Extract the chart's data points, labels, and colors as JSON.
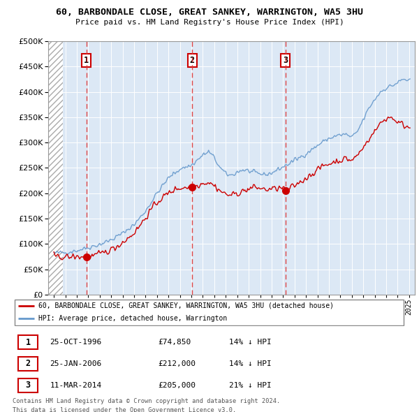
{
  "title": "60, BARBONDALE CLOSE, GREAT SANKEY, WARRINGTON, WA5 3HU",
  "subtitle": "Price paid vs. HM Land Registry's House Price Index (HPI)",
  "legend_label_red": "60, BARBONDALE CLOSE, GREAT SANKEY, WARRINGTON, WA5 3HU (detached house)",
  "legend_label_blue": "HPI: Average price, detached house, Warrington",
  "transactions": [
    {
      "num": 1,
      "date": "25-OCT-1996",
      "price": 74850,
      "x": 1996.83,
      "pct": "14%",
      "dir": "↓"
    },
    {
      "num": 2,
      "date": "25-JAN-2006",
      "price": 212000,
      "x": 2006.07,
      "pct": "14%",
      "dir": "↓"
    },
    {
      "num": 3,
      "date": "11-MAR-2014",
      "price": 205000,
      "x": 2014.21,
      "pct": "21%",
      "dir": "↓"
    }
  ],
  "footer1": "Contains HM Land Registry data © Crown copyright and database right 2024.",
  "footer2": "This data is licensed under the Open Government Licence v3.0.",
  "ylim": [
    0,
    500000
  ],
  "yticks": [
    0,
    50000,
    100000,
    150000,
    200000,
    250000,
    300000,
    350000,
    400000,
    450000,
    500000
  ],
  "xlim": [
    1993.5,
    2025.5
  ],
  "chart_bg": "#dce8f5",
  "hatch_color": "#b8c8d8",
  "grid_color": "#ffffff",
  "red_color": "#cc0000",
  "blue_color": "#6699cc",
  "vline_color": "#dd3333"
}
